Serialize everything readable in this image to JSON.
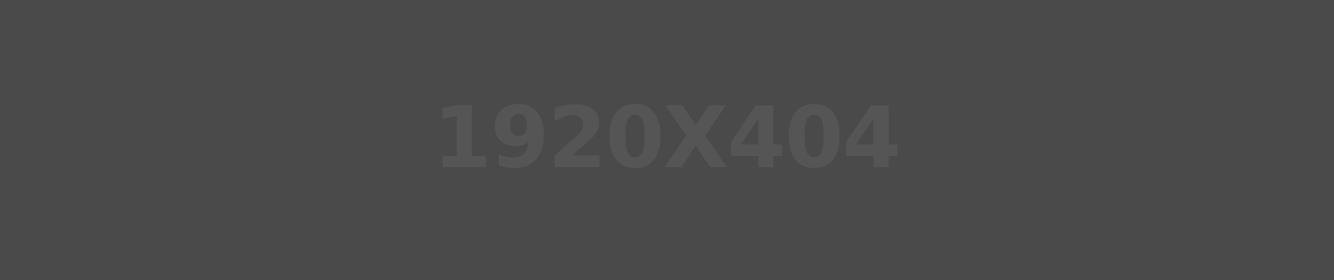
{
  "placeholder": {
    "label": "1920X404",
    "background_color": "#4a4a4a",
    "text_color": "#555555"
  }
}
